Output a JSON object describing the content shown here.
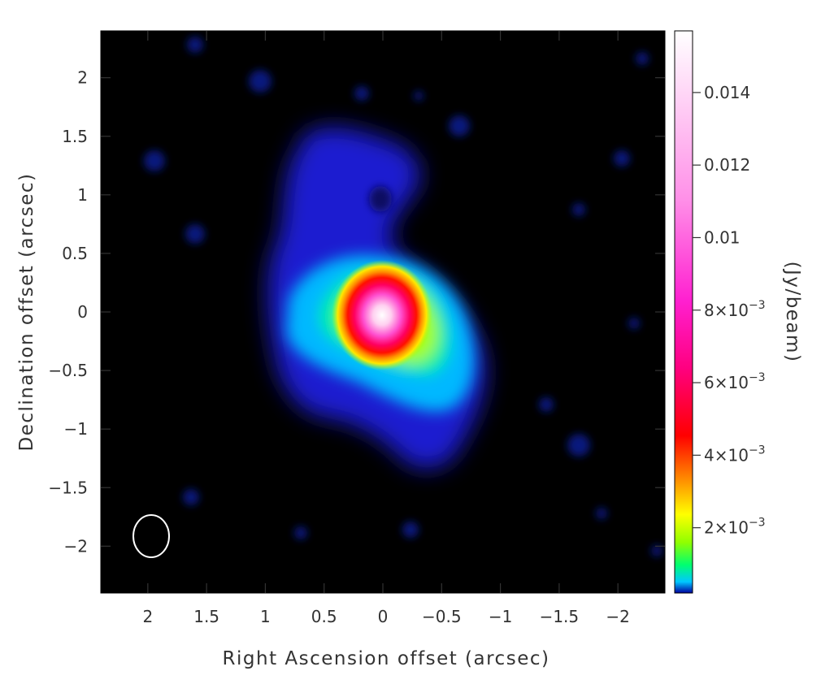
{
  "chart_data": {
    "type": "heatmap",
    "title": "",
    "xlabel": "Right Ascension offset (arcsec)",
    "ylabel": "Declination offset (arcsec)",
    "xlim": [
      2.4,
      -2.4
    ],
    "ylim": [
      -2.4,
      2.4
    ],
    "x_ticks": [
      {
        "value": 2,
        "label": "2"
      },
      {
        "value": 1.5,
        "label": "1.5"
      },
      {
        "value": 1,
        "label": "1"
      },
      {
        "value": 0.5,
        "label": "0.5"
      },
      {
        "value": 0,
        "label": "0"
      },
      {
        "value": -0.5,
        "label": "−0.5"
      },
      {
        "value": -1,
        "label": "−1"
      },
      {
        "value": -1.5,
        "label": "−1.5"
      },
      {
        "value": -2,
        "label": "−2"
      }
    ],
    "y_ticks": [
      {
        "value": 2,
        "label": "2"
      },
      {
        "value": 1.5,
        "label": "1.5"
      },
      {
        "value": 1,
        "label": "1"
      },
      {
        "value": 0.5,
        "label": "0.5"
      },
      {
        "value": 0,
        "label": "0"
      },
      {
        "value": -0.5,
        "label": "−0.5"
      },
      {
        "value": -1,
        "label": "−1"
      },
      {
        "value": -1.5,
        "label": "−1.5"
      },
      {
        "value": -2,
        "label": "−2"
      }
    ],
    "colorbar": {
      "label": "(Jy/beam)",
      "range": [
        0.0002,
        0.0157
      ],
      "ticks": [
        {
          "value": 0.002,
          "base": "2×10",
          "exp": "−3"
        },
        {
          "value": 0.004,
          "base": "4×10",
          "exp": "−3"
        },
        {
          "value": 0.006,
          "base": "6×10",
          "exp": "−3"
        },
        {
          "value": 0.008,
          "base": "8×10",
          "exp": "−3"
        },
        {
          "value": 0.01,
          "base": "0.01",
          "exp": ""
        },
        {
          "value": 0.012,
          "base": "0.012",
          "exp": ""
        },
        {
          "value": 0.014,
          "base": "0.014",
          "exp": ""
        }
      ],
      "colormap": [
        "#0a0a8c",
        "#00c8ff",
        "#00ff80",
        "#ffff00",
        "#ff8000",
        "#ff0000",
        "#ff00aa",
        "#ffffff"
      ]
    },
    "peak": {
      "x": 0.0,
      "y": -0.05,
      "flux": 0.0157
    },
    "beam": {
      "x": 2.0,
      "y": -1.95,
      "major": 0.33,
      "minor": 0.3
    },
    "grid": false
  }
}
